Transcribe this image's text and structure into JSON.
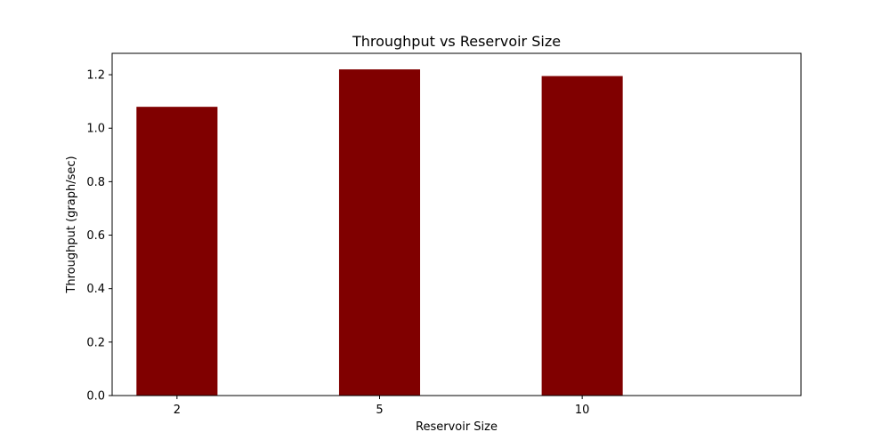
{
  "chart_data": {
    "type": "bar",
    "title": "Throughput vs Reservoir Size",
    "xlabel": "Reservoir Size",
    "ylabel": "Throughput (graph/sec)",
    "categories": [
      "2",
      "5",
      "10"
    ],
    "values": [
      1.08,
      1.22,
      1.195
    ],
    "ylim": [
      0,
      1.28
    ],
    "yticks": [
      "0.0",
      "0.2",
      "0.4",
      "0.6",
      "0.8",
      "1.0",
      "1.2"
    ],
    "grid": false,
    "legend": "none",
    "bar_color": "#800000"
  }
}
